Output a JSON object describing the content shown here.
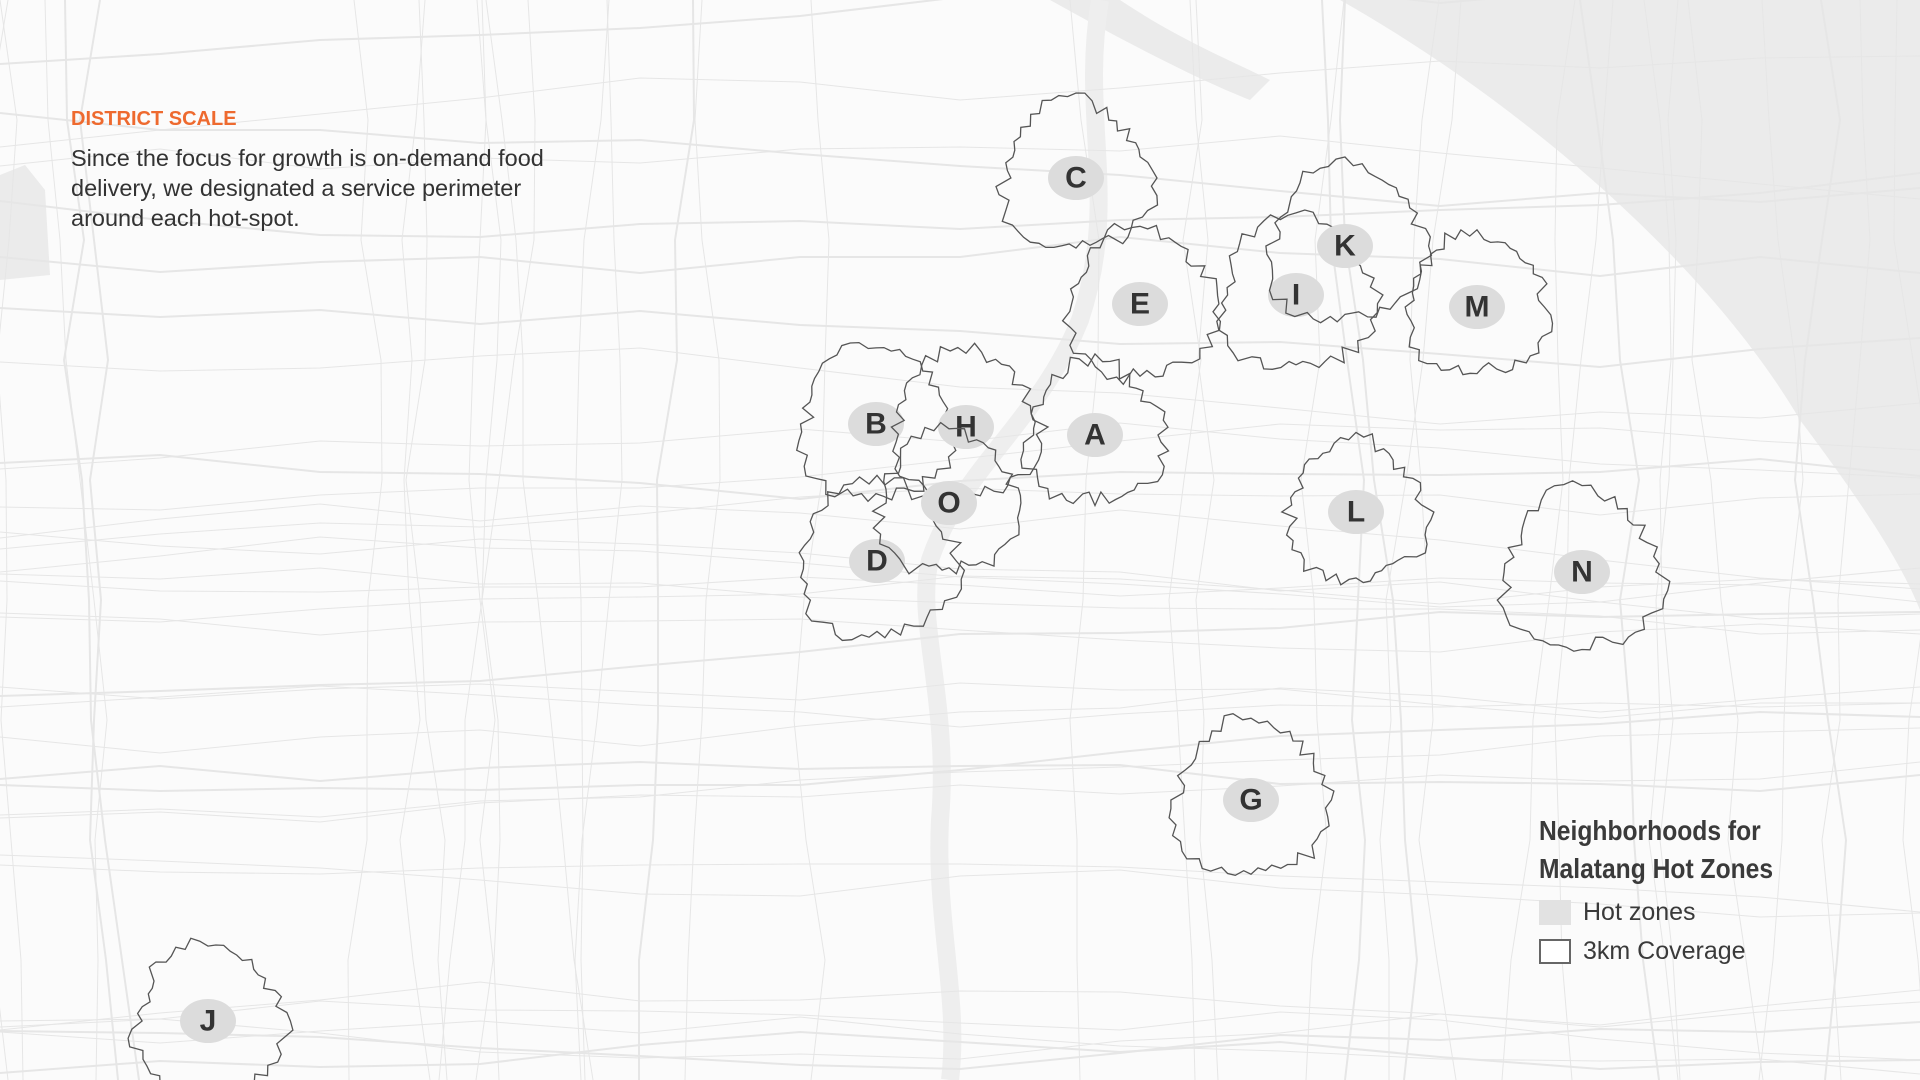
{
  "intro": {
    "kicker": "DISTRICT SCALE",
    "description": "Since the focus for growth is on-demand food delivery, we designated a service perimeter around each hot-spot."
  },
  "legend": {
    "title_line1": "Neighborhoods for",
    "title_line2": "Malatang Hot Zones",
    "items": [
      {
        "label": "Hot zones",
        "swatch": "#e2e2e2"
      },
      {
        "label": "3km Coverage",
        "swatch": "outline"
      }
    ]
  },
  "zones": [
    {
      "label": "A"
    },
    {
      "label": "B"
    },
    {
      "label": "C"
    },
    {
      "label": "D"
    },
    {
      "label": "E"
    },
    {
      "label": "G"
    },
    {
      "label": "H"
    },
    {
      "label": "I"
    },
    {
      "label": "J"
    },
    {
      "label": "K"
    },
    {
      "label": "L"
    },
    {
      "label": "M"
    },
    {
      "label": "N"
    },
    {
      "label": "O"
    }
  ],
  "colors": {
    "accent": "#ee6a2f",
    "water": "#ebebeb",
    "road": "#e6e6e6",
    "coverage_stroke": "#555555",
    "hot_zone": "#dcdcdc"
  }
}
